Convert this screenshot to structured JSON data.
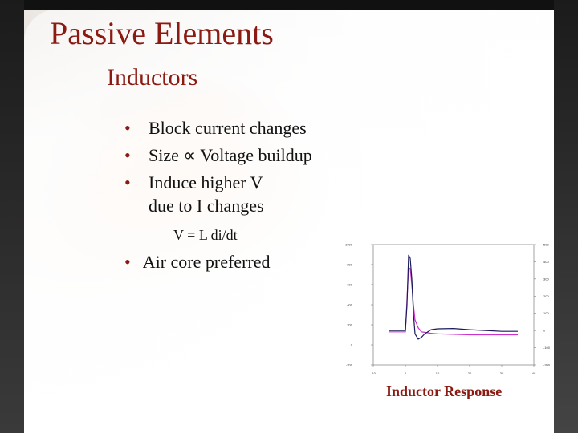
{
  "slide": {
    "title": "Passive Elements",
    "subtitle": "Inductors",
    "bullets": [
      "Block current changes",
      "Size ∝ Voltage buildup",
      "Induce higher V"
    ],
    "bullet_continuation": "due to I changes",
    "formula": "V = L  di/dt",
    "bullet_air": "Air core preferred",
    "bullet_glyph": "•",
    "caption": "Inductor Response"
  },
  "colors": {
    "accent": "#8b1a12",
    "series_magenta": "#cc33cc",
    "series_navy": "#1a1a5c"
  },
  "chart_data": {
    "type": "line",
    "x_ticks": [
      "-10",
      "0",
      "10",
      "20",
      "30",
      "40"
    ],
    "y_left_ticks": [
      "1000",
      "800",
      "600",
      "400",
      "200",
      "0",
      "-200"
    ],
    "y_right_ticks": [
      "500",
      "400",
      "300",
      "200",
      "100",
      "0",
      "-100",
      "-200"
    ],
    "xlim": [
      -10,
      40
    ],
    "ylim_left": [
      -200,
      1000
    ],
    "ylim_right": [
      -200,
      500
    ],
    "grid": false,
    "series": [
      {
        "axis": "left",
        "x": [
          -5,
          -2,
          0,
          0.5,
          1,
          1.5,
          2,
          2.5,
          3,
          4,
          5,
          6,
          8,
          10,
          15,
          20,
          25,
          30,
          35
        ],
        "y": [
          130,
          130,
          130,
          450,
          770,
          760,
          600,
          400,
          250,
          170,
          130,
          125,
          115,
          110,
          105,
          100,
          100,
          100,
          100
        ]
      },
      {
        "axis": "right",
        "x": [
          -5,
          -2,
          0,
          0.5,
          1,
          1.5,
          2,
          2.5,
          3,
          4,
          5,
          6,
          8,
          10,
          15,
          20,
          25,
          30,
          35
        ],
        "y": [
          0,
          0,
          0,
          150,
          440,
          420,
          300,
          100,
          -20,
          -50,
          -40,
          -20,
          5,
          10,
          12,
          5,
          0,
          -5,
          -5
        ]
      }
    ]
  }
}
